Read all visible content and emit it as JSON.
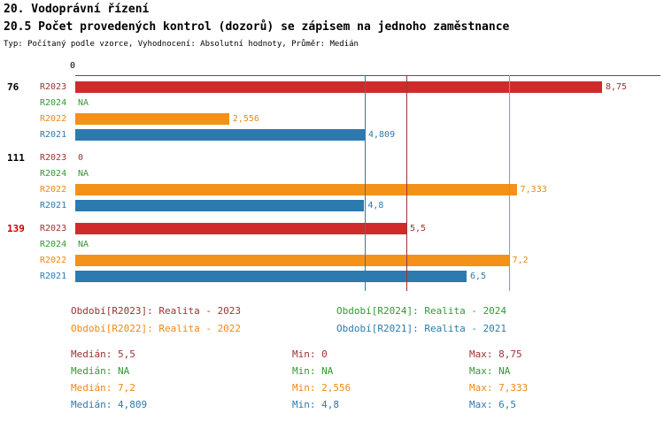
{
  "header": {
    "title": "20. Vodoprávní řízení",
    "subtitle": "20.5 Počet provedených kontrol (dozorů) se zápisem na jednoho zaměstnance",
    "meta": "Typ: Počítaný podle vzorce, Vyhodnocení: Absolutní hodnoty, Průměr: Medián"
  },
  "colors": {
    "R2023": {
      "bar": "#d02b2b",
      "text": "#993333",
      "line": "#993333"
    },
    "R2024": {
      "bar": "#339933",
      "text": "#339933",
      "line": "#339933"
    },
    "R2022": {
      "bar": "#f39119",
      "text": "#ee8812",
      "line": "#ee8812"
    },
    "R2021": {
      "bar": "#2d7aae",
      "text": "#2d7aae",
      "line": "#2d7aae"
    },
    "axis": "#555555"
  },
  "chart_data": {
    "type": "bar",
    "orientation": "horizontal",
    "axis_origin_label": "0",
    "xlim": [
      0,
      9.7
    ],
    "xlabel": "",
    "ylabel": "",
    "grid": false,
    "legend_position": "bottom",
    "groups": [
      {
        "label": "76",
        "label_color": "#000000",
        "rows": [
          {
            "series": "R2023",
            "value": 8.75,
            "display": "8,75"
          },
          {
            "series": "R2024",
            "value": null,
            "display": "NA"
          },
          {
            "series": "R2022",
            "value": 2.556,
            "display": "2,556"
          },
          {
            "series": "R2021",
            "value": 4.809,
            "display": "4,809"
          }
        ]
      },
      {
        "label": "111",
        "label_color": "#000000",
        "rows": [
          {
            "series": "R2023",
            "value": 0,
            "display": "0"
          },
          {
            "series": "R2024",
            "value": null,
            "display": "NA"
          },
          {
            "series": "R2022",
            "value": 7.333,
            "display": "7,333"
          },
          {
            "series": "R2021",
            "value": 4.8,
            "display": "4,8"
          }
        ]
      },
      {
        "label": "139",
        "label_color": "#cc0000",
        "rows": [
          {
            "series": "R2023",
            "value": 5.5,
            "display": "5,5"
          },
          {
            "series": "R2024",
            "value": null,
            "display": "NA"
          },
          {
            "series": "R2022",
            "value": 7.2,
            "display": "7,2"
          },
          {
            "series": "R2021",
            "value": 6.5,
            "display": "6,5"
          }
        ]
      }
    ],
    "median_lines": [
      {
        "series": "R2021",
        "value": 4.809
      },
      {
        "series": "R2023",
        "value": 5.5
      },
      {
        "series": "R2022",
        "value": 7.2
      }
    ]
  },
  "legend": [
    {
      "series": "R2023",
      "label": "Období[R2023]: Realita - 2023"
    },
    {
      "series": "R2024",
      "label": "Období[R2024]: Realita - 2024"
    },
    {
      "series": "R2022",
      "label": "Období[R2022]: Realita - 2022"
    },
    {
      "series": "R2021",
      "label": "Období[R2021]: Realita - 2021"
    }
  ],
  "stats": [
    {
      "series": "R2023",
      "median": "Medián: 5,5",
      "min": "Min: 0",
      "max": "Max: 8,75"
    },
    {
      "series": "R2024",
      "median": "Medián: NA",
      "min": "Min: NA",
      "max": "Max: NA"
    },
    {
      "series": "R2022",
      "median": "Medián: 7,2",
      "min": "Min: 2,556",
      "max": "Max: 7,333"
    },
    {
      "series": "R2021",
      "median": "Medián: 4,809",
      "min": "Min: 4,8",
      "max": "Max: 6,5"
    }
  ]
}
